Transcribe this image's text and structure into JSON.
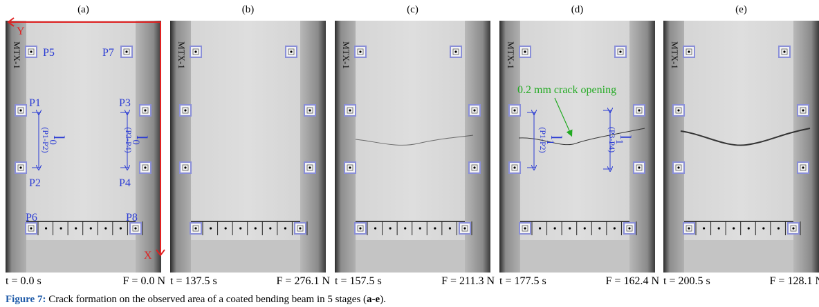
{
  "panels": [
    {
      "label": "(a)",
      "time": "t = 0.0 s",
      "force": "F = 0.0 N"
    },
    {
      "label": "(b)",
      "time": "t = 137.5 s",
      "force": "F = 276.1 N"
    },
    {
      "label": "(c)",
      "time": "t = 157.5 s",
      "force": "F = 211.3 N"
    },
    {
      "label": "(d)",
      "time": "t = 177.5 s",
      "force": "F = 162.4 N"
    },
    {
      "label": "(e)",
      "time": "t = 200.5 s",
      "force": "F = 128.1 N"
    }
  ],
  "specimen_label": "MTX-1",
  "panel_a": {
    "points": {
      "p5": "P5",
      "p7": "P7",
      "p1": "P1",
      "p3": "P3",
      "p2": "P2",
      "p4": "P4",
      "p6": "P6",
      "p8": "P8"
    },
    "axis_x": "X",
    "axis_y": "Y",
    "gauge_left": {
      "symbol": "l",
      "subscript": "0",
      "pair": "(P1-P2)"
    },
    "gauge_right": {
      "symbol": "l",
      "subscript": "0",
      "pair": "(P3-P4)"
    }
  },
  "panel_d": {
    "crack": "0.2 mm crack opening",
    "gauge_left": {
      "symbol": "l",
      "subscript": "1",
      "pair": "(P1-P2)"
    },
    "gauge_right": {
      "symbol": "l",
      "subscript": "1",
      "pair": "(P3-P4)"
    }
  },
  "caption": {
    "label": "Figure 7:",
    "text": " Crack formation on the observed area of a coated bending beam in 5 stages (",
    "stages": "a-e",
    "end": ")."
  }
}
